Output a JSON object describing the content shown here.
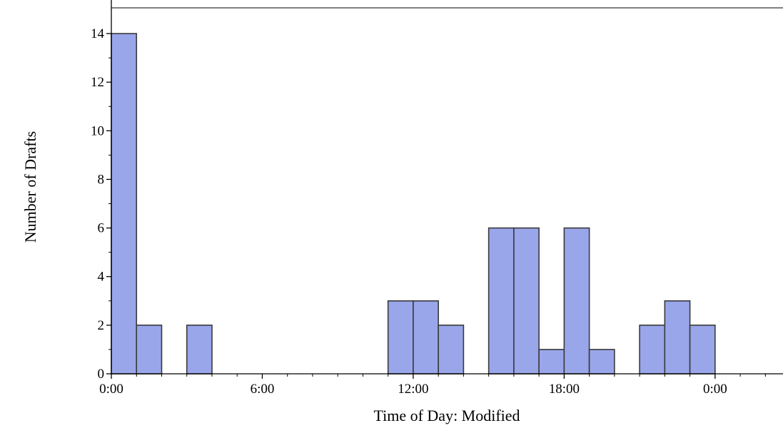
{
  "chart_data": {
    "type": "histogram",
    "title": "",
    "xlabel": "Time of Day: Modified",
    "ylabel": "Number of Drafts",
    "x_unit": "hour of day",
    "bin_width_hours": 1,
    "xlim": [
      0,
      26.7
    ],
    "ylim": [
      0,
      15
    ],
    "x_ticks": [
      {
        "value": 0,
        "label": "0:00"
      },
      {
        "value": 6,
        "label": "6:00"
      },
      {
        "value": 12,
        "label": "12:00"
      },
      {
        "value": 18,
        "label": "18:00"
      },
      {
        "value": 24,
        "label": "0:00"
      }
    ],
    "y_ticks": [
      0,
      2,
      4,
      6,
      8,
      10,
      12,
      14
    ],
    "bins": [
      {
        "start": 0,
        "count": 14
      },
      {
        "start": 1,
        "count": 2
      },
      {
        "start": 3,
        "count": 2
      },
      {
        "start": 11,
        "count": 3
      },
      {
        "start": 12,
        "count": 3
      },
      {
        "start": 13,
        "count": 2
      },
      {
        "start": 15,
        "count": 6
      },
      {
        "start": 16,
        "count": 6
      },
      {
        "start": 17,
        "count": 1
      },
      {
        "start": 18,
        "count": 6
      },
      {
        "start": 19,
        "count": 1
      },
      {
        "start": 21,
        "count": 2
      },
      {
        "start": 22,
        "count": 3
      },
      {
        "start": 23,
        "count": 2
      }
    ],
    "grid": false,
    "colors": {
      "bar_fill": "#9aa6ea",
      "bar_stroke": "#3a3a3a",
      "axis": "#000000"
    }
  }
}
